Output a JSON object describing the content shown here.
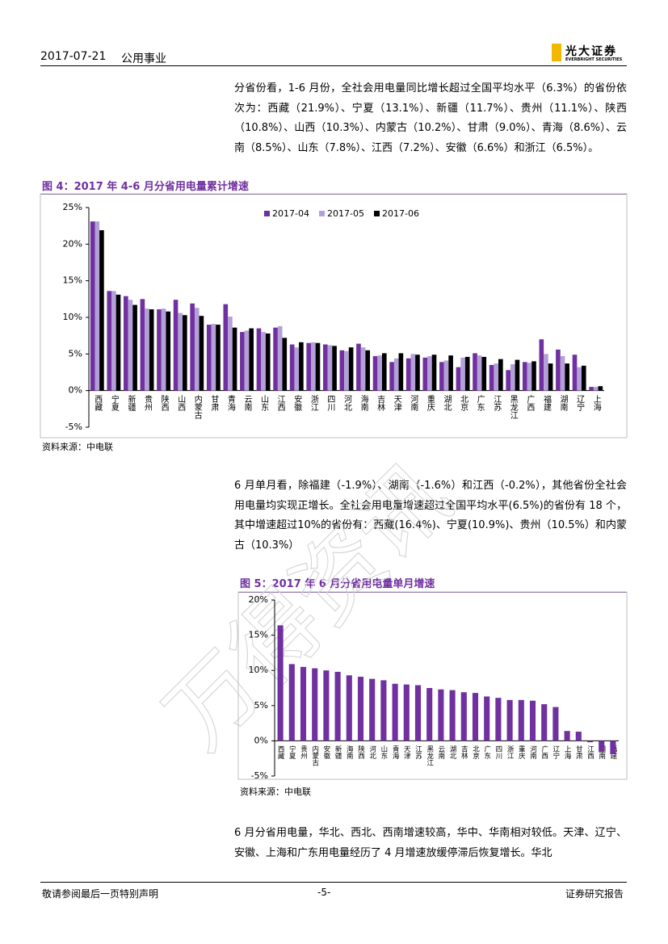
{
  "header": {
    "date": "2017-07-21",
    "sector": "公用事业",
    "logo_cn": "光大证券",
    "logo_en": "EVERBRIGHT SECURITIES"
  },
  "paragraphs": [
    "分省份看，1-6 月份，全社会用电量同比增长超过全国平均水平（6.3%）的省份依次为：西藏（21.9%）、宁夏（13.1%）、新疆（11.7%）、贵州（11.1%）、陕西（10.8%）、山西（10.3%）、内蒙古（10.2%）、甘肃（9.0%）、青海（8.6%）、云南（8.5%）、山东（7.8%）、江西（7.2%）、安徽（6.6%）和浙江（6.5%）。",
    "6 月单月看，除福建（-1.9%）、湖南（-1.6%）和江西（-0.2%），其他省份全社会用电量均实现正增长。全社会用电量增速超过全国平均水平(6.5%)的省份有 18 个，其中增速超过10%的省份有：西藏(16.4%)、宁夏(10.9%)、贵州（10.5%）和内蒙古（10.3%）",
    "6 月分省用电量，华北、西北、西南增速较高，华中、华南相对较低。天津、辽宁、安徽、上海和广东用电量经历了 4 月增速放缓停滞后恢复增长。华北"
  ],
  "watermark": "万得资讯",
  "chart_data": [
    {
      "type": "bar",
      "title": "图 4：2017 年 4-6 月分省用电量累计增速",
      "source": "资料来源：中电联",
      "categories": [
        "西藏",
        "宁夏",
        "新疆",
        "贵州",
        "陕西",
        "山西",
        "内蒙古",
        "甘肃",
        "青海",
        "云南",
        "山东",
        "江西",
        "安徽",
        "浙江",
        "四川",
        "河北",
        "海南",
        "吉林",
        "天津",
        "河南",
        "重庆",
        "湖北",
        "北京",
        "广东",
        "江苏",
        "黑龙江",
        "广西",
        "福建",
        "湖南",
        "辽宁",
        "上海"
      ],
      "series": [
        {
          "name": "2017-04",
          "color": "#7030a0",
          "values": [
            23.1,
            13.6,
            12.9,
            12.5,
            11.1,
            12.4,
            11.9,
            9.0,
            11.8,
            8.0,
            8.5,
            8.6,
            6.3,
            6.5,
            6.3,
            5.5,
            6.4,
            4.7,
            3.9,
            4.4,
            4.5,
            3.9,
            3.2,
            5.1,
            3.5,
            2.8,
            3.9,
            7.0,
            5.6,
            4.9,
            0.5
          ]
        },
        {
          "name": "2017-05",
          "color": "#b4a0d8",
          "values": [
            23.1,
            13.6,
            12.4,
            11.2,
            11.2,
            10.6,
            11.3,
            9.1,
            10.1,
            8.2,
            8.0,
            8.8,
            5.9,
            6.6,
            6.2,
            5.4,
            5.9,
            4.8,
            4.4,
            5.0,
            4.7,
            4.1,
            4.5,
            4.8,
            3.7,
            3.6,
            3.8,
            5.0,
            4.7,
            3.2,
            0.5
          ]
        },
        {
          "name": "2017-06",
          "color": "#000000",
          "values": [
            21.9,
            13.1,
            11.7,
            11.1,
            10.8,
            10.3,
            10.2,
            9.0,
            8.6,
            8.5,
            7.8,
            7.2,
            6.6,
            6.5,
            6.1,
            5.9,
            5.5,
            5.1,
            5.1,
            4.9,
            4.9,
            4.8,
            4.6,
            4.6,
            4.3,
            4.2,
            4.0,
            3.7,
            3.7,
            3.4,
            0.6
          ]
        }
      ],
      "ylim": [
        -5,
        25
      ],
      "yticks": [
        {
          "value": -5,
          "label": "-5%"
        },
        {
          "value": 0,
          "label": "0%"
        },
        {
          "value": 5,
          "label": "5%"
        },
        {
          "value": 10,
          "label": "10%"
        },
        {
          "value": 15,
          "label": "15%"
        },
        {
          "value": 20,
          "label": "20%"
        },
        {
          "value": 25,
          "label": "25%"
        }
      ],
      "legend": "top"
    },
    {
      "type": "bar",
      "title": "图 5：2017 年 6 月分省用电量单月增速",
      "source": "资料来源：中电联",
      "categories": [
        "西藏",
        "宁夏",
        "贵州",
        "内蒙古",
        "安徽",
        "新疆",
        "海南",
        "陕西",
        "河北",
        "山东",
        "青海",
        "天津",
        "江苏",
        "黑龙江",
        "云南",
        "湖北",
        "吉林",
        "北京",
        "广东",
        "四川",
        "浙江",
        "重庆",
        "河南",
        "广西",
        "辽宁",
        "上海",
        "甘肃",
        "江西",
        "湖南",
        "福建"
      ],
      "series": [
        {
          "name": "2017-06",
          "color": "#7030a0",
          "values": [
            16.4,
            10.9,
            10.5,
            10.3,
            10.0,
            9.8,
            9.3,
            9.1,
            8.8,
            8.6,
            8.1,
            8.0,
            7.9,
            7.5,
            7.3,
            7.2,
            6.9,
            6.8,
            6.3,
            6.1,
            5.8,
            5.8,
            5.7,
            5.2,
            4.8,
            1.4,
            1.3,
            -0.2,
            -1.6,
            -1.9
          ]
        }
      ],
      "ylim": [
        -5,
        20
      ],
      "yticks": [
        {
          "value": -5,
          "label": "-5%"
        },
        {
          "value": 0,
          "label": "0%"
        },
        {
          "value": 5,
          "label": "5%"
        },
        {
          "value": 10,
          "label": "10%"
        },
        {
          "value": 15,
          "label": "15%"
        },
        {
          "value": 20,
          "label": "20%"
        }
      ],
      "legend": "none"
    }
  ],
  "footer": {
    "left": "敬请参阅最后一页特别声明",
    "center": "-5-",
    "right": "证券研究报告"
  }
}
